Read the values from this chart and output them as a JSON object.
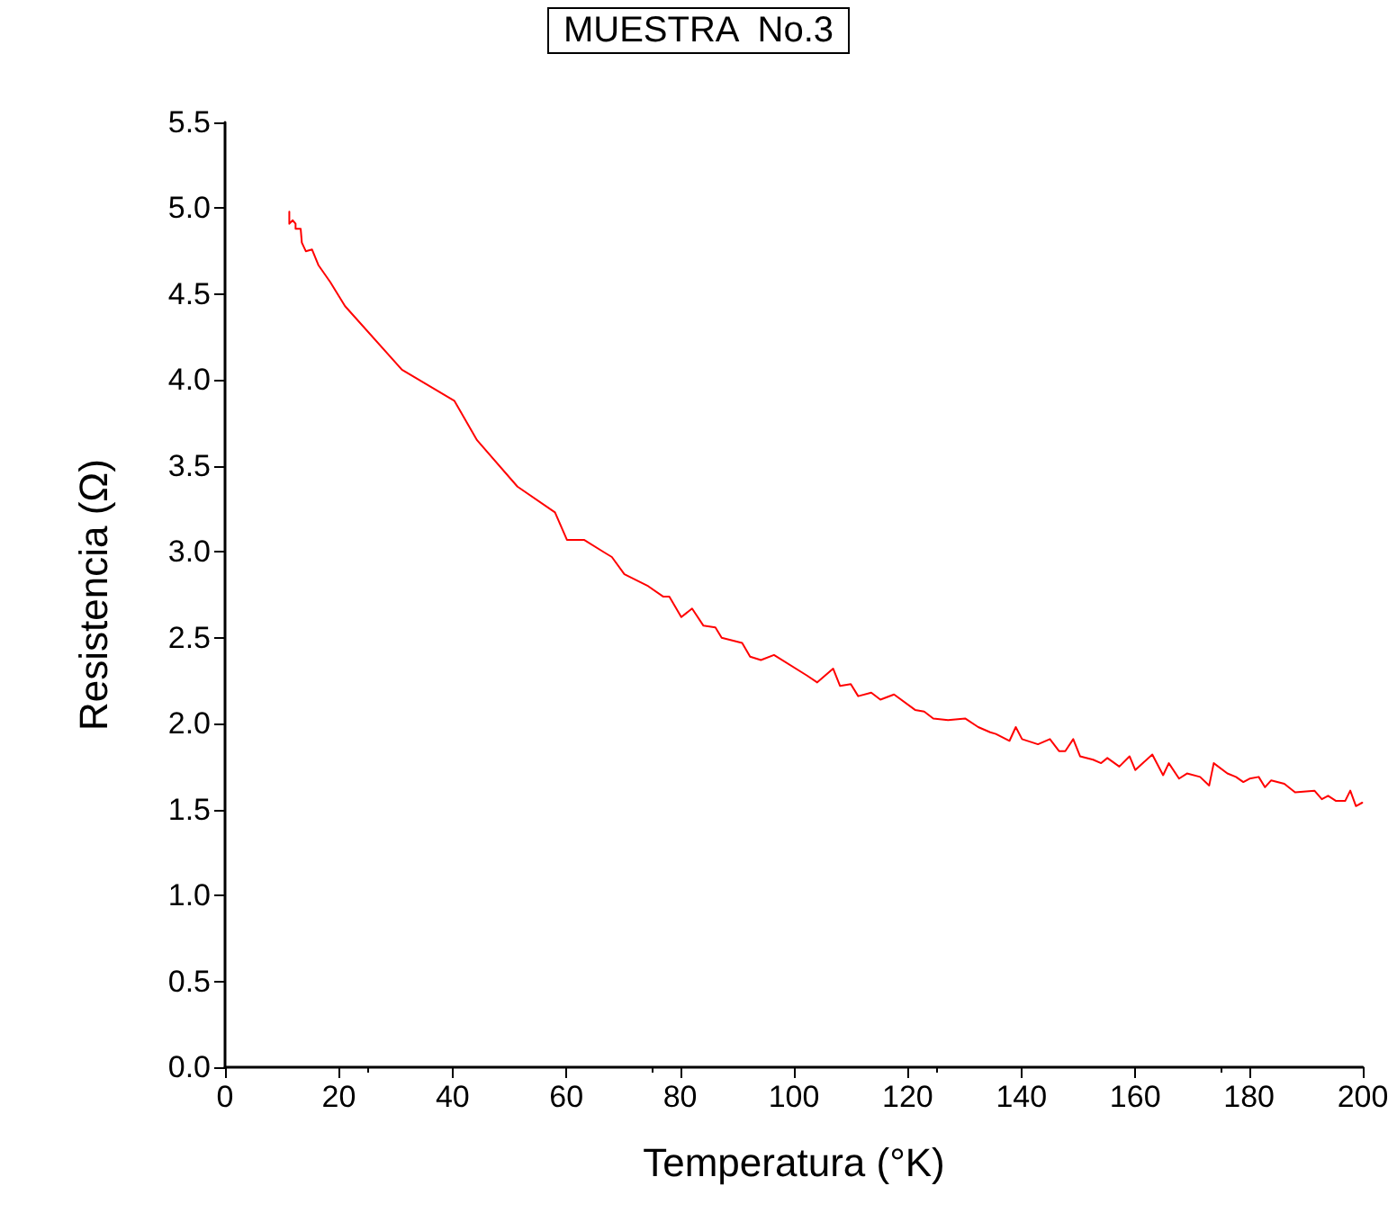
{
  "chart_data": {
    "type": "line",
    "title": "MUESTRA  No.3",
    "xlabel": "Temperatura (°K)",
    "ylabel": "Resistencia (Ω)",
    "series": [
      {
        "color": "#ff0000",
        "x": [
          11.3,
          11.3,
          11.9,
          12.4,
          12.4,
          13.3,
          13.5,
          14.2,
          15.3,
          16.4,
          18.5,
          21.1,
          31.1,
          40.3,
          44.3,
          51.4,
          58.0,
          60.1,
          63.1,
          66.5,
          68.0,
          70.2,
          74.4,
          77.0,
          78.1,
          80.2,
          82.1,
          84.1,
          86.2,
          87.3,
          90.9,
          92.3,
          94.2,
          96.5,
          102.3,
          104.1,
          106.9,
          108.1,
          110.0,
          111.3,
          113.6,
          115.2,
          117.6,
          121.3,
          122.9,
          124.5,
          127.1,
          130.1,
          132.4,
          134.5,
          135.5,
          137.9,
          139.0,
          140.1,
          142.9,
          145.0,
          146.6,
          147.7,
          149.1,
          150.3,
          152.6,
          154.0,
          155.1,
          157.2,
          159.0,
          160.0,
          163.0,
          164.9,
          165.9,
          167.7,
          169.1,
          171.4,
          173.0,
          173.8,
          176.2,
          177.7,
          179.0,
          180.1,
          181.7,
          182.8,
          183.9,
          186.2,
          188.1,
          191.5,
          192.8,
          193.9,
          195.3,
          196.9,
          197.8,
          198.8,
          199.9
        ],
        "values": [
          4.98,
          4.91,
          4.93,
          4.91,
          4.88,
          4.88,
          4.8,
          4.75,
          4.76,
          4.67,
          4.57,
          4.43,
          4.06,
          3.88,
          3.65,
          3.38,
          3.23,
          3.07,
          3.07,
          3.0,
          2.97,
          2.87,
          2.8,
          2.74,
          2.74,
          2.62,
          2.67,
          2.57,
          2.56,
          2.5,
          2.47,
          2.39,
          2.37,
          2.4,
          2.28,
          2.24,
          2.32,
          2.22,
          2.23,
          2.16,
          2.18,
          2.14,
          2.17,
          2.08,
          2.07,
          2.03,
          2.02,
          2.03,
          1.98,
          1.95,
          1.94,
          1.9,
          1.98,
          1.91,
          1.88,
          1.91,
          1.84,
          1.84,
          1.91,
          1.81,
          1.79,
          1.77,
          1.8,
          1.75,
          1.81,
          1.73,
          1.82,
          1.7,
          1.77,
          1.68,
          1.71,
          1.69,
          1.64,
          1.77,
          1.71,
          1.69,
          1.66,
          1.68,
          1.69,
          1.63,
          1.67,
          1.65,
          1.6,
          1.61,
          1.56,
          1.58,
          1.55,
          1.55,
          1.61,
          1.52,
          1.54
        ]
      }
    ],
    "xlim": [
      0,
      200
    ],
    "xticks": [
      0,
      20,
      40,
      60,
      80,
      100,
      120,
      140,
      160,
      180,
      200
    ],
    "ylim": [
      0,
      5.5
    ],
    "yticks": [
      {
        "value": 0,
        "label": "0.0"
      },
      {
        "value": 0.5,
        "label": "0.5"
      },
      {
        "value": 1,
        "label": "1.0"
      },
      {
        "value": 1.5,
        "label": "1.5"
      },
      {
        "value": 2,
        "label": "2.0"
      },
      {
        "value": 2.5,
        "label": "2.5"
      },
      {
        "value": 3,
        "label": "3.0"
      },
      {
        "value": 3.5,
        "label": "3.5"
      },
      {
        "value": 4,
        "label": "4.0"
      },
      {
        "value": 4.5,
        "label": "4.5"
      },
      {
        "value": 5,
        "label": "5.0"
      },
      {
        "value": 5.5,
        "label": "5.5"
      }
    ],
    "grid": false,
    "marker": "none",
    "line_style": "solid"
  }
}
